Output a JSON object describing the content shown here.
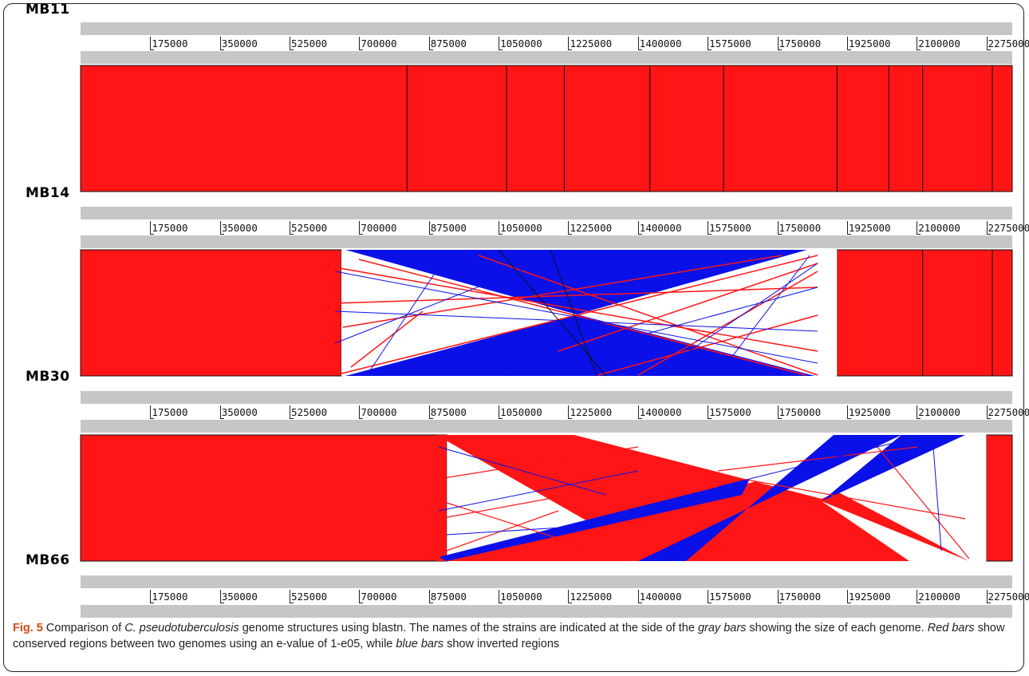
{
  "genomes": [
    {
      "name": "MB11"
    },
    {
      "name": "MB14"
    },
    {
      "name": "MB30"
    },
    {
      "name": "MB66"
    }
  ],
  "ruler_ticks": [
    175000,
    350000,
    525000,
    700000,
    875000,
    1050000,
    1225000,
    1400000,
    1575000,
    1750000,
    1925000,
    2100000,
    2275000
  ],
  "genome_length": 2340000,
  "colors": {
    "conserved": "#ff1515",
    "inverted": "#0a10e8",
    "genome_bar": "#c6c6c6",
    "caption_label": "#d04a14"
  },
  "comparisons": [
    {
      "pair": [
        "MB11",
        "MB14"
      ],
      "conserved_blocks": [
        [
          0,
          820000
        ],
        [
          820000,
          1070000
        ],
        [
          1070000,
          1215000
        ],
        [
          1215000,
          1430000
        ],
        [
          1430000,
          1615000
        ],
        [
          1615000,
          1900000
        ],
        [
          1900000,
          2030000
        ],
        [
          2030000,
          2115000
        ],
        [
          2115000,
          2290000
        ],
        [
          2290000,
          2340000
        ]
      ],
      "inverted_blocks": []
    },
    {
      "pair": [
        "MB14",
        "MB30"
      ],
      "conserved_blocks": [
        [
          0,
          655000
        ],
        [
          1900000,
          2115000
        ],
        [
          2115000,
          2290000
        ],
        [
          2290000,
          2340000
        ]
      ],
      "inverted_blocks": [
        [
          655000,
          1900000,
          1900000,
          655000
        ]
      ],
      "rearranged_region": [
        655000,
        1900000
      ]
    },
    {
      "pair": [
        "MB30",
        "MB66"
      ],
      "conserved_blocks": [
        [
          0,
          920000
        ],
        [
          2275000,
          2340000
        ]
      ],
      "inverted_blocks": [],
      "rearranged_region": [
        920000,
        2275000
      ]
    }
  ],
  "caption": {
    "label": "Fig. 5",
    "text_1": " Comparison of ",
    "species": "C. pseudotuberculosis",
    "text_2": " genome structures using blastn. The names of the strains are indicated at the side of the ",
    "gray_bars": "gray bars",
    "text_3": " showing the size of each genome. ",
    "red_bars": "Red bars",
    "text_4": " show conserved regions between two genomes using an e-value of 1-e05, while ",
    "blue_bars": "blue bars",
    "text_5": " show inverted regions"
  }
}
